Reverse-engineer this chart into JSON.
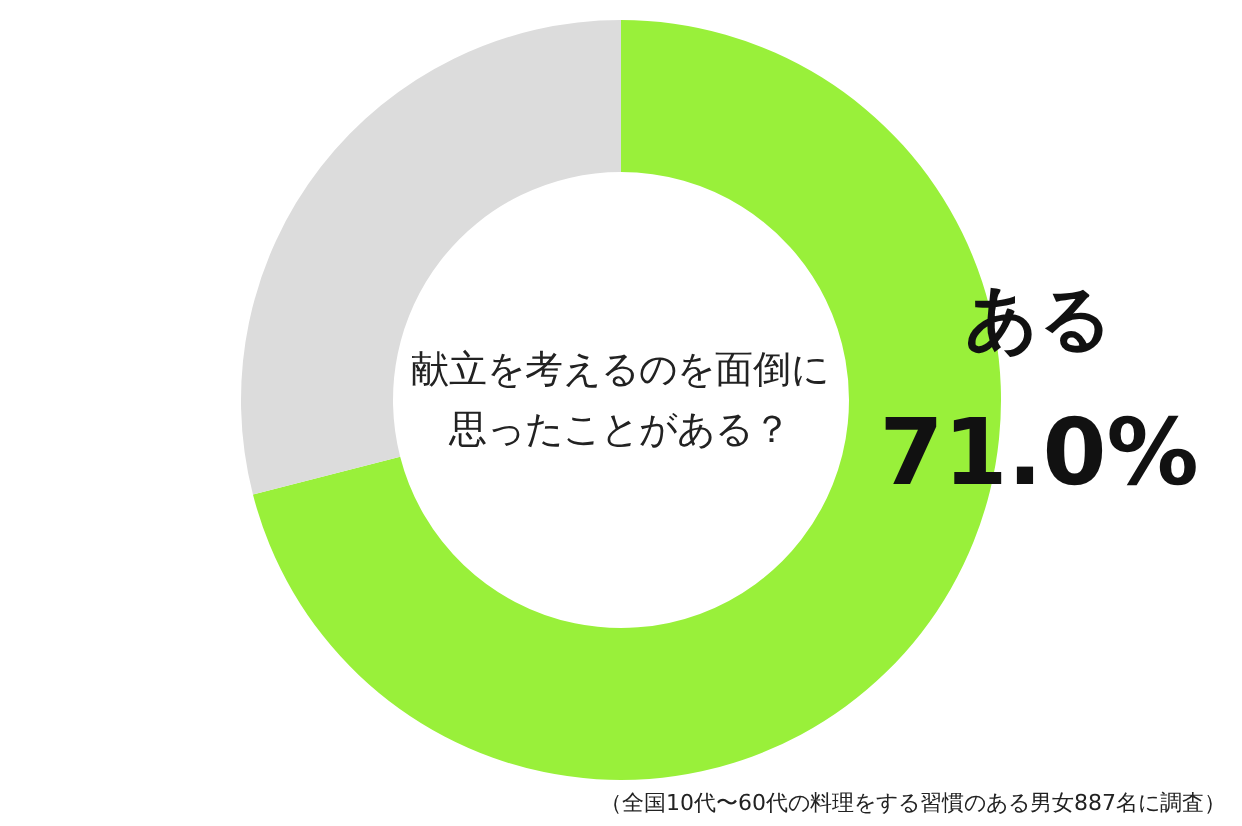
{
  "chart_data": {
    "type": "donut",
    "title": "献立を考えるのを面倒に思ったことがある？",
    "categories": [
      "ある",
      null
    ],
    "values": [
      71.0,
      29.0
    ],
    "colors": [
      "#99f03a",
      "#dcdcdc"
    ],
    "value_labels": [
      "71.0%",
      null
    ],
    "legend": false,
    "annotations": [
      "（全国10代〜60代の料理をする習慣のある男女887名に調査）"
    ]
  }
}
